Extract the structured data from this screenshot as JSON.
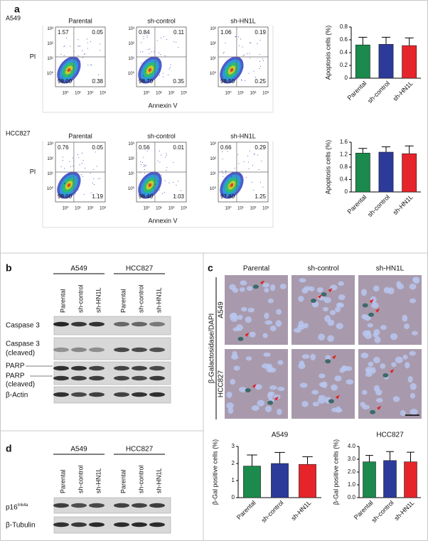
{
  "figure": {
    "a": {
      "label": "a",
      "axis_y": "PI",
      "axis_x": "Annexin V",
      "flow_ticks": [
        "10⁰",
        "10¹",
        "10²",
        "10³"
      ],
      "rows": [
        {
          "cell_line": "A549",
          "plots": [
            {
              "title": "Parental",
              "quadrants": [
                "1.57",
                "0.05",
                "98.00",
                "0.38"
              ]
            },
            {
              "title": "sh-control",
              "quadrants": [
                "0.84",
                "0.11",
                "98.70",
                "0.35"
              ]
            },
            {
              "title": "sh-HN1L",
              "quadrants": [
                "1.06",
                "0.19",
                "98.50",
                "0.25"
              ]
            }
          ]
        },
        {
          "cell_line": "HCC827",
          "plots": [
            {
              "title": "Parental",
              "quadrants": [
                "0.76",
                "0.05",
                "98.00",
                "1.19"
              ]
            },
            {
              "title": "sh-control",
              "quadrants": [
                "0.56",
                "0.01",
                "98.40",
                "1.03"
              ]
            },
            {
              "title": "sh-HN1L",
              "quadrants": [
                "0.66",
                "0.29",
                "97.80",
                "1.25"
              ]
            }
          ]
        }
      ]
    },
    "b": {
      "label": "b",
      "groups": [
        "A549",
        "HCC827"
      ],
      "lanes": [
        "Parental",
        "sh-control",
        "sh-HN1L"
      ],
      "blots": [
        {
          "lines": [
            "Caspase 3"
          ]
        },
        {
          "lines": [
            "Caspase 3",
            "(cleaved)"
          ]
        },
        {
          "lines": [
            "PARP",
            "PARP",
            "(cleaved)"
          ]
        },
        {
          "lines": [
            "β-Actin"
          ]
        }
      ]
    },
    "c": {
      "label": "c",
      "stain": "β-Galactosidase/DAPI",
      "columns": [
        "Parental",
        "sh-control",
        "sh-HN1L"
      ],
      "rows": [
        "A549",
        "HCC827"
      ]
    },
    "d": {
      "label": "d",
      "groups": [
        "A549",
        "HCC827"
      ],
      "lanes": [
        "Parental",
        "sh-control",
        "sh-HN1L"
      ],
      "blots": [
        {
          "text": "p16",
          "sup": "Ink4a"
        },
        {
          "text": "β-Tubulin"
        }
      ]
    }
  },
  "chart_data": [
    {
      "type": "bar",
      "ylabel": "Apoptosis cells (%)",
      "categories": [
        "Parental",
        "sh-control",
        "sh-HN1L"
      ],
      "values": [
        0.52,
        0.53,
        0.51
      ],
      "errors": [
        0.12,
        0.11,
        0.12
      ],
      "colors": [
        "#1b8a4c",
        "#2c3a9a",
        "#e5252a"
      ],
      "ylim": [
        0,
        0.8
      ],
      "yticks": [
        0,
        0.2,
        0.4,
        0.6,
        0.8
      ]
    },
    {
      "type": "bar",
      "ylabel": "Apoptosis cells (%)",
      "categories": [
        "Parental",
        "sh-control",
        "sh-HN1L"
      ],
      "values": [
        1.25,
        1.28,
        1.23
      ],
      "errors": [
        0.15,
        0.17,
        0.25
      ],
      "colors": [
        "#1b8a4c",
        "#2c3a9a",
        "#e5252a"
      ],
      "ylim": [
        0,
        1.6
      ],
      "yticks": [
        0,
        0.4,
        0.8,
        1.2,
        1.6
      ]
    },
    {
      "type": "bar",
      "title": "A549",
      "ylabel": "β-Gal positive cells (%)",
      "categories": [
        "Parental",
        "sh-control",
        "sh-HN1L"
      ],
      "values": [
        1.85,
        2.0,
        1.95
      ],
      "errors": [
        0.65,
        0.65,
        0.45
      ],
      "colors": [
        "#1b8a4c",
        "#2c3a9a",
        "#e5252a"
      ],
      "ylim": [
        0,
        3
      ],
      "yticks": [
        0,
        1,
        2,
        3
      ]
    },
    {
      "type": "bar",
      "title": "HCC827",
      "ylabel": "β-Gal positive cells (%)",
      "categories": [
        "Parental",
        "sh-control",
        "sh-HN1L"
      ],
      "values": [
        2.8,
        2.9,
        2.8
      ],
      "errors": [
        0.5,
        0.7,
        0.75
      ],
      "colors": [
        "#1b8a4c",
        "#2c3a9a",
        "#e5252a"
      ],
      "ylim": [
        0,
        4
      ],
      "yticks": [
        {
          "value": 0,
          "label": "0.0"
        },
        {
          "value": 1,
          "label": "1.0"
        },
        {
          "value": 2,
          "label": "2.0"
        },
        {
          "value": 3,
          "label": "3.0"
        },
        {
          "value": 4,
          "label": "4.0"
        }
      ]
    }
  ]
}
